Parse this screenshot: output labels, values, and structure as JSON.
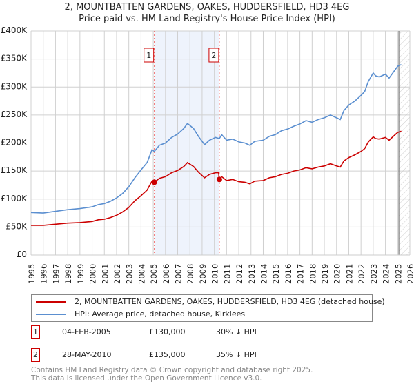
{
  "chart_data": {
    "type": "line",
    "title": "2, MOUNTBATTEN GARDENS, OAKES, HUDDERSFIELD, HD3 4EG",
    "subtitle": "Price paid vs. HM Land Registry's House Price Index (HPI)",
    "xlim": [
      1995,
      2026
    ],
    "ylim": [
      0,
      400000
    ],
    "y_ticks": [
      0,
      50000,
      100000,
      150000,
      200000,
      250000,
      300000,
      350000,
      400000
    ],
    "y_tick_labels": [
      "£0",
      "£50K",
      "£100K",
      "£150K",
      "£200K",
      "£250K",
      "£300K",
      "£350K",
      "£400K"
    ],
    "x_ticks": [
      "1995",
      "1996",
      "1997",
      "1998",
      "1999",
      "2000",
      "2001",
      "2002",
      "2003",
      "2004",
      "2005",
      "2006",
      "2007",
      "2008",
      "2009",
      "2010",
      "2011",
      "2012",
      "2013",
      "2014",
      "2015",
      "2016",
      "2017",
      "2018",
      "2019",
      "2020",
      "2021",
      "2022",
      "2023",
      "2024",
      "2025",
      "2026"
    ],
    "grid": true,
    "shaded_region": [
      2005.09,
      2010.41
    ],
    "forecast_hatch_from": 2025.1,
    "series": [
      {
        "name": "2, MOUNTBATTEN GARDENS, OAKES, HUDDERSFIELD, HD3 4EG (detached house)",
        "color": "#cc0000",
        "x": [
          1995,
          1996,
          1997,
          1998,
          1999,
          2000,
          2000.5,
          2001,
          2001.5,
          2002,
          2002.5,
          2003,
          2003.5,
          2004,
          2004.5,
          2004.9,
          2005.09,
          2005.5,
          2006,
          2006.5,
          2007,
          2007.5,
          2007.8,
          2008.3,
          2008.7,
          2009.2,
          2009.6,
          2010.1,
          2010.35,
          2010.41,
          2010.6,
          2011,
          2011.5,
          2012,
          2012.5,
          2012.9,
          2013.3,
          2014,
          2014.5,
          2015,
          2015.5,
          2016,
          2016.5,
          2017,
          2017.5,
          2018,
          2018.5,
          2019,
          2019.5,
          2020,
          2020.3,
          2020.6,
          2021,
          2021.5,
          2022,
          2022.3,
          2022.6,
          2023,
          2023.2,
          2023.5,
          2024,
          2024.3,
          2024.7,
          2025,
          2025.3
        ],
        "y": [
          53,
          53,
          55,
          57,
          58,
          60,
          63,
          64,
          67,
          71,
          77,
          85,
          97,
          106,
          116,
          132,
          130,
          137,
          140,
          147,
          151,
          158,
          165,
          158,
          148,
          138,
          144,
          147,
          147,
          135,
          140,
          133,
          135,
          131,
          130,
          127,
          132,
          133,
          138,
          140,
          144,
          146,
          150,
          152,
          156,
          154,
          157,
          159,
          163,
          159,
          157,
          168,
          174,
          179,
          185,
          190,
          202,
          211,
          208,
          207,
          210,
          205,
          213,
          219,
          221
        ]
      },
      {
        "name": "HPI: Average price, detached house, Kirklees",
        "color": "#5b8fd0",
        "x": [
          1995,
          1996,
          1997,
          1998,
          1999,
          2000,
          2000.5,
          2001,
          2001.5,
          2002,
          2002.5,
          2003,
          2003.5,
          2004,
          2004.5,
          2004.9,
          2005.09,
          2005.5,
          2006,
          2006.5,
          2007,
          2007.5,
          2007.8,
          2008.3,
          2008.7,
          2009.2,
          2009.6,
          2010.1,
          2010.41,
          2010.6,
          2011,
          2011.5,
          2012,
          2012.5,
          2012.9,
          2013.3,
          2014,
          2014.5,
          2015,
          2015.5,
          2016,
          2016.5,
          2017,
          2017.5,
          2018,
          2018.5,
          2019,
          2019.5,
          2020,
          2020.3,
          2020.6,
          2021,
          2021.5,
          2022,
          2022.3,
          2022.6,
          2023,
          2023.2,
          2023.5,
          2024,
          2024.3,
          2024.7,
          2025,
          2025.3
        ],
        "y": [
          76,
          75,
          78,
          81,
          83,
          86,
          90,
          92,
          96,
          102,
          110,
          122,
          138,
          152,
          165,
          188,
          185,
          196,
          200,
          210,
          216,
          226,
          235,
          226,
          212,
          197,
          205,
          210,
          208,
          215,
          205,
          207,
          202,
          200,
          196,
          203,
          205,
          212,
          215,
          222,
          225,
          230,
          234,
          240,
          237,
          242,
          245,
          250,
          245,
          242,
          258,
          268,
          275,
          285,
          292,
          310,
          325,
          320,
          318,
          323,
          316,
          328,
          337,
          340
        ]
      }
    ],
    "y_units": "thousands GBP",
    "sales": [
      {
        "label": "1",
        "x": 2005.09,
        "y": 130
      },
      {
        "label": "2",
        "x": 2010.41,
        "y": 135
      }
    ]
  },
  "legend": {
    "red_label": "2, MOUNTBATTEN GARDENS, OAKES, HUDDERSFIELD, HD3 4EG (detached house)",
    "blue_label": "HPI: Average price, detached house, Kirklees"
  },
  "transactions": [
    {
      "num": "1",
      "date": "04-FEB-2005",
      "price": "£130,000",
      "diff": "30% ↓ HPI"
    },
    {
      "num": "2",
      "date": "28-MAY-2010",
      "price": "£135,000",
      "diff": "35% ↓ HPI"
    }
  ],
  "footer": {
    "line1": "Contains HM Land Registry data © Crown copyright and database right 2025.",
    "line2": "This data is licensed under the Open Government Licence v3.0."
  }
}
